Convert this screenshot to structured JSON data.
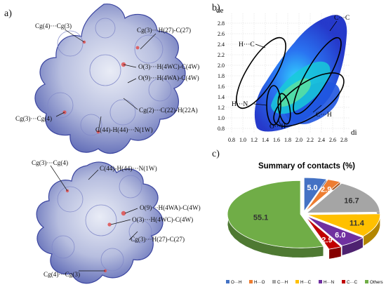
{
  "panel_labels": {
    "a": "a)",
    "b": "b)",
    "c": "c)"
  },
  "top_annotations": [
    "Cg(4)···Cg(3)",
    "Cg(3)···H(27)-C(27)",
    "O(3)···H(4WC)-C(4W)",
    "O(9)···H(4WA)-C(4W)",
    "Cg(3)···Cg(4)",
    "Cg(2)···C(22)-H(22A)",
    "C(44)-H(44)···N(1W)"
  ],
  "bottom_annotations": [
    "Cg(3)···Cg(4)",
    "C(44)-H(44)···N(1W)",
    "O(9)···H(4WA)-C(4W)",
    "O(3)···H(4WC)-C(4W)",
    "Cg(3)···H(27)-C(27)",
    "Cg(4)···Cg(3)"
  ],
  "fingerprint": {
    "y_axis_label": "de",
    "x_axis_label": "di",
    "x_ticks": [
      "0.8",
      "1.0",
      "1.2",
      "1.4",
      "1.6",
      "1.8",
      "2.0",
      "2.2",
      "2.4",
      "2.6",
      "2.8"
    ],
    "y_ticks": [
      "2.8",
      "2.6",
      "2.4",
      "2.2",
      "2.0",
      "1.8",
      "1.6",
      "1.4",
      "1.2",
      "1.0",
      "0.8"
    ],
    "region_labels": [
      "C···C",
      "H···C",
      "H···N",
      "C···H",
      "O···H"
    ]
  },
  "chart_data": {
    "type": "pie",
    "title": "Summary of contacts (%)",
    "categories": [
      "O···H",
      "H···O",
      "C···H",
      "H···C",
      "H···N",
      "C···C",
      "Others"
    ],
    "values": [
      5.0,
      2.9,
      16.7,
      11.4,
      6.0,
      2.9,
      55.1
    ],
    "value_labels": [
      "5.0",
      "2.9",
      "16.7",
      "11.4",
      "6.0",
      "2.9",
      "55.1"
    ],
    "colors": [
      "#4472c4",
      "#ed7d31",
      "#a5a5a5",
      "#ffc000",
      "#7030a0",
      "#c00000",
      "#70ad47"
    ],
    "legend_position": "bottom"
  }
}
